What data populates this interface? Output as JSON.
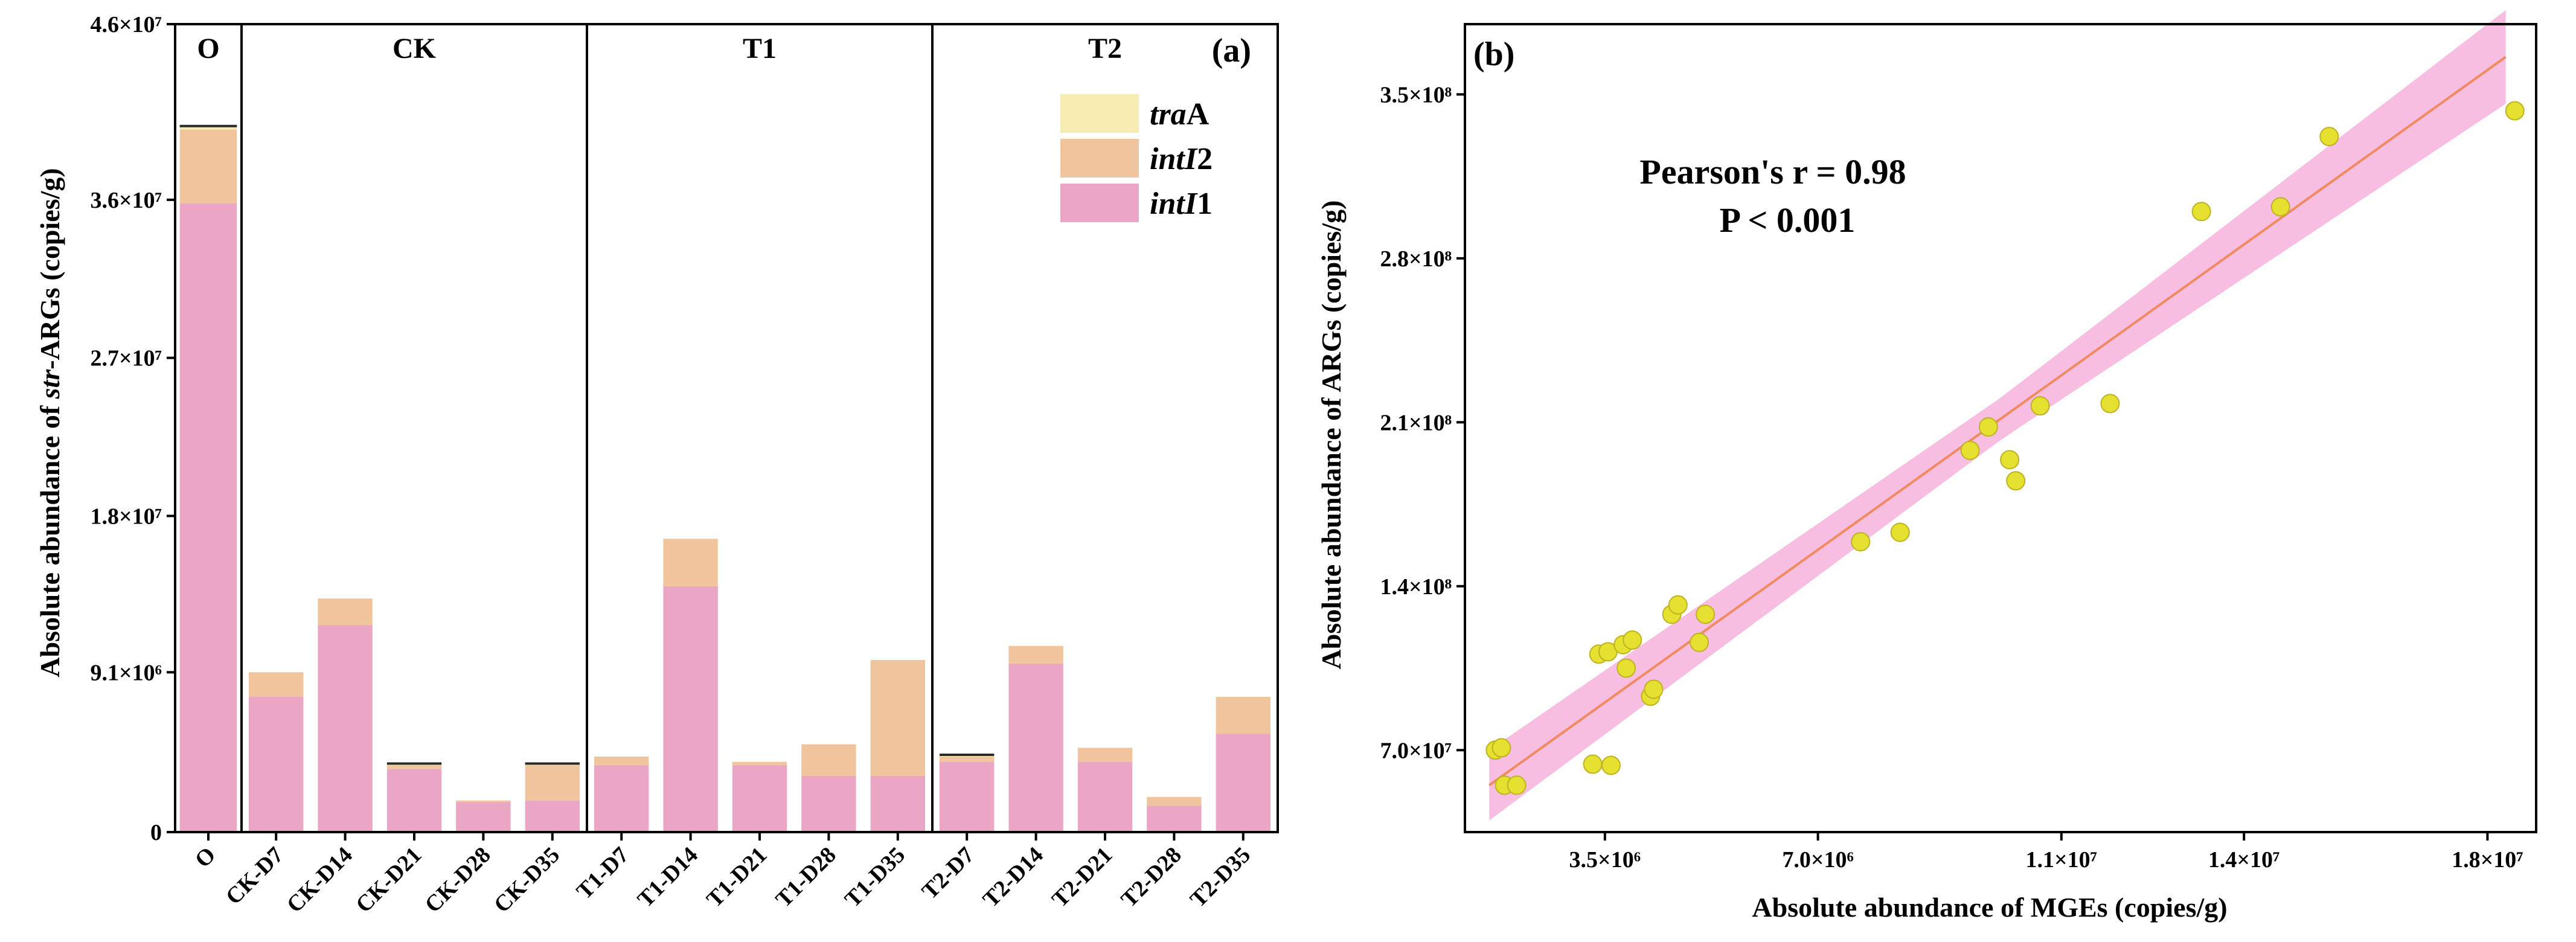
{
  "chart_data": [
    {
      "type": "bar",
      "panel_label": "(a)",
      "stacked": true,
      "ylabel": "Absolute abundance of str-ARGs (copies/g)",
      "ylabel_parts": [
        {
          "text": "Absolute abundance of ",
          "italic": false
        },
        {
          "text": "str",
          "italic": true
        },
        {
          "text": "-ARGs (copies/g)",
          "italic": false
        }
      ],
      "ylim": [
        0,
        46000000
      ],
      "yticks": [
        {
          "value": 0,
          "label": "0"
        },
        {
          "value": 9100000,
          "label": "9.1×10⁶"
        },
        {
          "value": 18000000,
          "label": "1.8×10⁷"
        },
        {
          "value": 27000000,
          "label": "2.7×10⁷"
        },
        {
          "value": 36000000,
          "label": "3.6×10⁷"
        },
        {
          "value": 46000000,
          "label": "4.6×10⁷"
        }
      ],
      "categories": [
        "O",
        "CK-D7",
        "CK-D14",
        "CK-D21",
        "CK-D28",
        "CK-D35",
        "T1-D7",
        "T1-D14",
        "T1-D21",
        "T1-D28",
        "T1-D35",
        "T2-D7",
        "T2-D14",
        "T2-D21",
        "T2-D28",
        "T2-D35"
      ],
      "groups": [
        {
          "label": "O",
          "start": 0,
          "end": 0
        },
        {
          "label": "CK",
          "start": 1,
          "end": 5
        },
        {
          "label": "T1",
          "start": 6,
          "end": 10
        },
        {
          "label": "T2",
          "start": 11,
          "end": 15
        }
      ],
      "series": [
        {
          "name": "intI1",
          "name_parts": [
            {
              "text": "int",
              "italic": true
            },
            {
              "text": "I",
              "italic": true
            },
            {
              "text": "1",
              "italic": false
            }
          ],
          "color": "#eba6c6",
          "values": [
            35800000,
            7700000,
            11800000,
            3600000,
            1700000,
            1800000,
            3800000,
            14000000,
            3800000,
            3200000,
            3200000,
            4000000,
            9600000,
            4000000,
            1500000,
            5600000
          ]
        },
        {
          "name": "intI2",
          "name_parts": [
            {
              "text": "int",
              "italic": true
            },
            {
              "text": "I",
              "italic": true
            },
            {
              "text": "2",
              "italic": false
            }
          ],
          "color": "#f0c49c",
          "values": [
            4200000,
            1400000,
            1500000,
            200000,
            100000,
            2000000,
            500000,
            2700000,
            200000,
            1800000,
            6600000,
            300000,
            1000000,
            800000,
            500000,
            2100000
          ]
        },
        {
          "name": "traA",
          "name_parts": [
            {
              "text": "tra",
              "italic": true
            },
            {
              "text": "A",
              "italic": false
            }
          ],
          "color": "#f6ecb2",
          "values": [
            200000,
            0,
            0,
            100000,
            0,
            100000,
            0,
            0,
            0,
            0,
            0,
            100000,
            0,
            0,
            0,
            0
          ]
        }
      ],
      "legend_position": "top-right",
      "grid": false
    },
    {
      "type": "scatter",
      "panel_label": "(b)",
      "xlabel": "Absolute abundance of MGEs (copies/g)",
      "ylabel": "Absolute abundance of ARGs (copies/g)",
      "xlim": [
        1200000,
        18800000
      ],
      "ylim": [
        35000000,
        380000000
      ],
      "xticks": [
        {
          "value": 3500000,
          "label": "3.5×10⁶"
        },
        {
          "value": 7000000,
          "label": "7.0×10⁶"
        },
        {
          "value": 11000000,
          "label": "1.1×10⁷"
        },
        {
          "value": 14000000,
          "label": "1.4×10⁷"
        },
        {
          "value": 18000000,
          "label": "1.8×10⁷"
        }
      ],
      "yticks": [
        {
          "value": 70000000,
          "label": "7.0×10⁷"
        },
        {
          "value": 140000000,
          "label": "1.4×10⁸"
        },
        {
          "value": 210000000,
          "label": "2.1×10⁸"
        },
        {
          "value": 280000000,
          "label": "2.8×10⁸"
        },
        {
          "value": 350000000,
          "label": "3.5×10⁸"
        }
      ],
      "annotation": [
        "Pearson's r = 0.98",
        "P < 0.001"
      ],
      "point_color": "#e6e030",
      "fit_color": "#f08a60",
      "band_color": "#f7b3dc",
      "fit_line": [
        {
          "x": 1600000,
          "y": 55000000
        },
        {
          "x": 18300000,
          "y": 366000000
        }
      ],
      "band_halfwidth": [
        {
          "x": 1600000,
          "y": 15000000
        },
        {
          "x": 10000000,
          "y": 9000000
        },
        {
          "x": 18300000,
          "y": 20000000
        }
      ],
      "points": [
        {
          "x": 1700000,
          "y": 70000000
        },
        {
          "x": 1800000,
          "y": 71000000
        },
        {
          "x": 1850000,
          "y": 55000000
        },
        {
          "x": 2050000,
          "y": 55000000
        },
        {
          "x": 3300000,
          "y": 64000000
        },
        {
          "x": 3600000,
          "y": 63500000
        },
        {
          "x": 3400000,
          "y": 111000000
        },
        {
          "x": 3550000,
          "y": 112000000
        },
        {
          "x": 3800000,
          "y": 115000000
        },
        {
          "x": 3950000,
          "y": 117000000
        },
        {
          "x": 3850000,
          "y": 105000000
        },
        {
          "x": 4250000,
          "y": 93000000
        },
        {
          "x": 4300000,
          "y": 96000000
        },
        {
          "x": 4600000,
          "y": 128000000
        },
        {
          "x": 4700000,
          "y": 132000000
        },
        {
          "x": 5050000,
          "y": 116000000
        },
        {
          "x": 5150000,
          "y": 128000000
        },
        {
          "x": 7700000,
          "y": 159000000
        },
        {
          "x": 8350000,
          "y": 163000000
        },
        {
          "x": 9500000,
          "y": 198000000
        },
        {
          "x": 9800000,
          "y": 208000000
        },
        {
          "x": 10150000,
          "y": 194000000
        },
        {
          "x": 10250000,
          "y": 185000000
        },
        {
          "x": 10650000,
          "y": 217000000
        },
        {
          "x": 11800000,
          "y": 218000000
        },
        {
          "x": 13300000,
          "y": 300000000
        },
        {
          "x": 14600000,
          "y": 302000000
        },
        {
          "x": 15400000,
          "y": 332000000
        },
        {
          "x": 18450000,
          "y": 343000000
        }
      ],
      "grid": false
    }
  ]
}
